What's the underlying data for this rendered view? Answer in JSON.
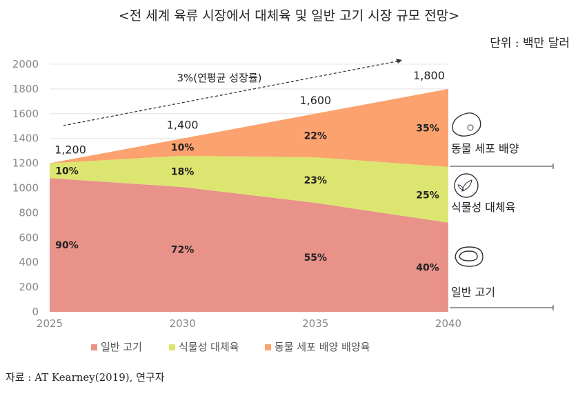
{
  "chart_data": {
    "type": "area",
    "stacked": true,
    "title": "<전 세계 육류 시장에서 대체육 및 일반 고기 시장 규모 전망>",
    "unit": "단위 : 백만 달러",
    "x": [
      2025,
      2030,
      2035,
      2040
    ],
    "ylim": [
      0,
      2000
    ],
    "yticks": [
      0,
      200,
      400,
      600,
      800,
      1000,
      1200,
      1400,
      1600,
      1800,
      2000
    ],
    "grid": true,
    "legend_position": "bottom",
    "series": [
      {
        "name": "일반 고기",
        "color": "#e8928a",
        "values": [
          1080,
          1008,
          880,
          720
        ],
        "share_labels": [
          "90%",
          "72%",
          "55%",
          "40%"
        ]
      },
      {
        "name": "식물성 대체육",
        "color": "#dce570",
        "values": [
          120,
          252,
          368,
          450
        ],
        "share_labels": [
          "10%",
          "18%",
          "23%",
          "25%"
        ]
      },
      {
        "name": "동물 세포 배양 배양육",
        "color": "#fba26e",
        "values": [
          0,
          140,
          352,
          630
        ],
        "share_labels": [
          "",
          "10%",
          "22%",
          "35%"
        ]
      }
    ],
    "totals": [
      "1,200",
      "1,400",
      "1,600",
      "1,800"
    ],
    "annotation": "3%(연평균 성장률)",
    "side_labels": [
      "동물 세포 배양",
      "식물성 대체육",
      "일반 고기"
    ]
  },
  "source": "자료 : AT Kearney(2019), 연구자"
}
